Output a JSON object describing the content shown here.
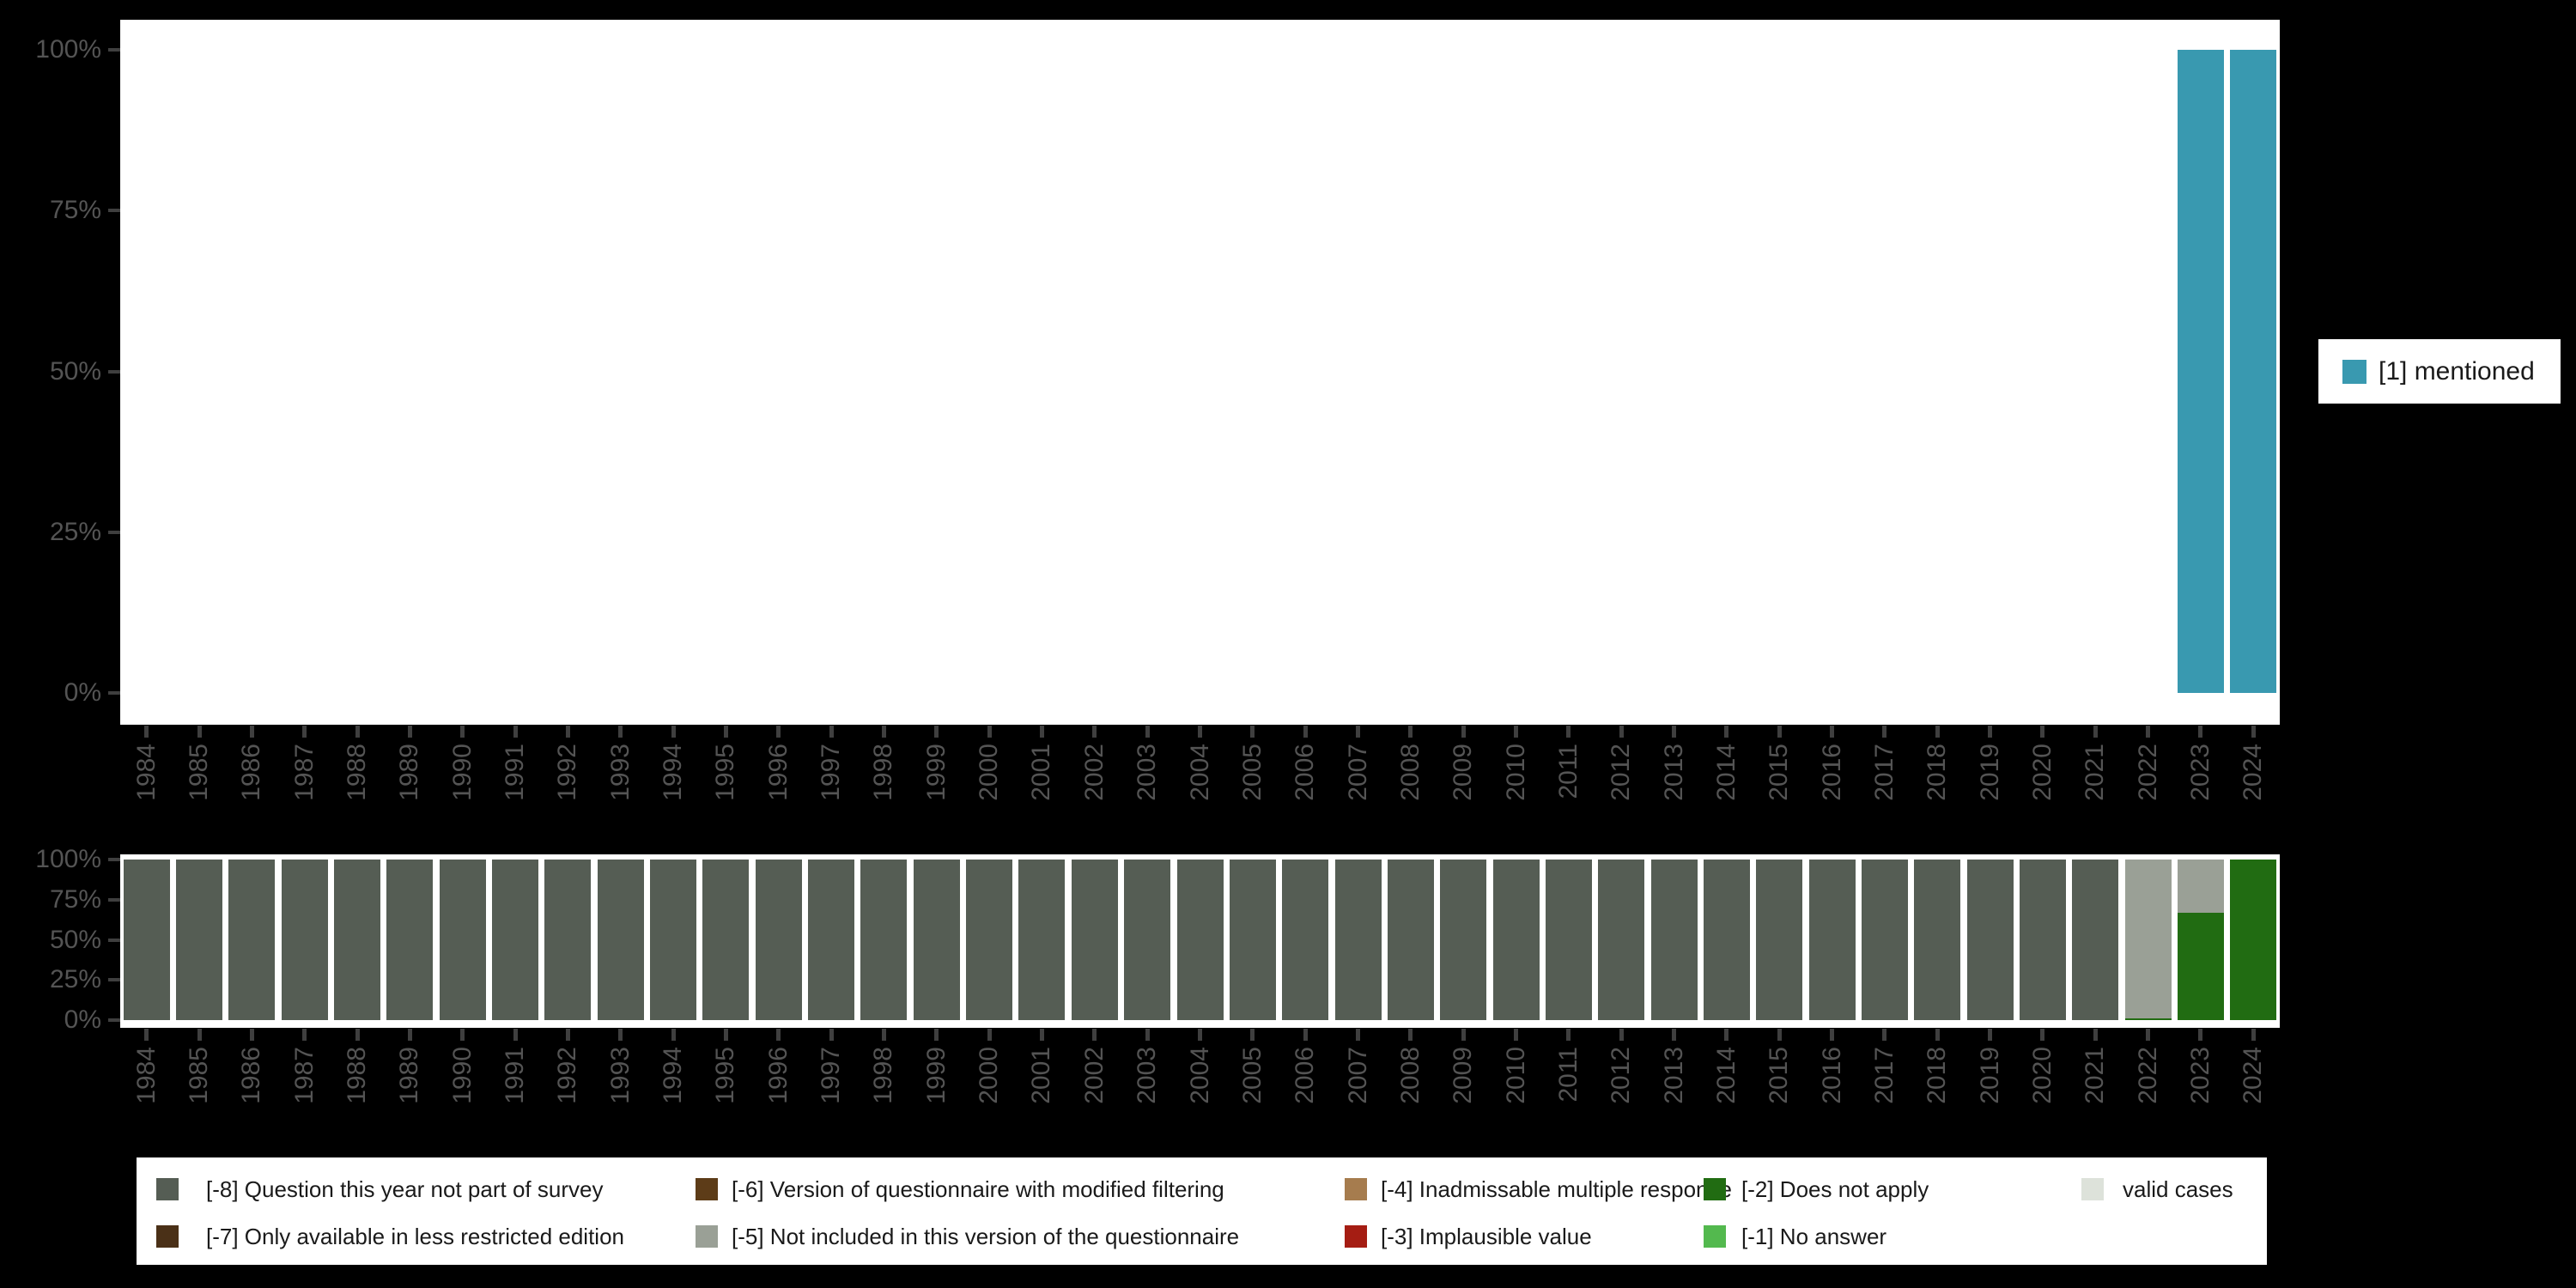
{
  "colors": {
    "background": "#000000",
    "panel": "#ffffff",
    "axis_text": "#545454",
    "axis_tick": "#3f3f3f",
    "legend_text": "#1a1a1a",
    "mentioned": "#3999B0",
    "code_m8": "#555D54",
    "code_m7": "#4A3017",
    "code_m6": "#5D3C18",
    "code_m5": "#9AA096",
    "code_m4": "#A67C4E",
    "code_m3": "#A51D13",
    "code_m2": "#216C12",
    "code_m1": "#53B94E",
    "valid_cases": "#DDE2DA"
  },
  "years": [
    "1984",
    "1985",
    "1986",
    "1987",
    "1988",
    "1989",
    "1990",
    "1991",
    "1992",
    "1993",
    "1994",
    "1995",
    "1996",
    "1997",
    "1998",
    "1999",
    "2000",
    "2001",
    "2002",
    "2003",
    "2004",
    "2005",
    "2006",
    "2007",
    "2008",
    "2009",
    "2010",
    "2011",
    "2012",
    "2013",
    "2014",
    "2015",
    "2016",
    "2017",
    "2018",
    "2019",
    "2020",
    "2021",
    "2022",
    "2023",
    "2024"
  ],
  "y_axis_ticks": [
    "100%",
    "75%",
    "50%",
    "25%",
    "0%"
  ],
  "top_legend": {
    "label": "[1] mentioned",
    "color": "#3999B0"
  },
  "bottom_legend": {
    "items": [
      {
        "label": "[-8] Question this year not part of survey",
        "color": "#555D54"
      },
      {
        "label": "[-7] Only available in less restricted edition",
        "color": "#4A3017"
      },
      {
        "label": "[-6] Version of questionnaire with modified filtering",
        "color": "#5D3C18"
      },
      {
        "label": "[-5] Not included in this version of the questionnaire",
        "color": "#9AA096"
      },
      {
        "label": "[-4] Inadmissable multiple response",
        "color": "#A67C4E"
      },
      {
        "label": "[-3] Implausible value",
        "color": "#A51D13"
      },
      {
        "label": "[-2] Does not apply",
        "color": "#216C12"
      },
      {
        "label": "[-1] No answer",
        "color": "#53B94E"
      },
      {
        "label": "valid cases",
        "color": "#DDE2DA"
      }
    ]
  },
  "chart_data": [
    {
      "type": "bar",
      "stacked": true,
      "title": "",
      "xlabel": "",
      "ylabel": "",
      "x": [
        "1984",
        "1985",
        "1986",
        "1987",
        "1988",
        "1989",
        "1990",
        "1991",
        "1992",
        "1993",
        "1994",
        "1995",
        "1996",
        "1997",
        "1998",
        "1999",
        "2000",
        "2001",
        "2002",
        "2003",
        "2004",
        "2005",
        "2006",
        "2007",
        "2008",
        "2009",
        "2010",
        "2011",
        "2012",
        "2013",
        "2014",
        "2015",
        "2016",
        "2017",
        "2018",
        "2019",
        "2020",
        "2021",
        "2022",
        "2023",
        "2024"
      ],
      "y_tick_labels": [
        "0%",
        "25%",
        "50%",
        "75%",
        "100%"
      ],
      "ylim": [
        0,
        100
      ],
      "grid": false,
      "legend_position": "right",
      "series": [
        {
          "name": "[1] mentioned",
          "color": "#3999B0",
          "values": [
            0,
            0,
            0,
            0,
            0,
            0,
            0,
            0,
            0,
            0,
            0,
            0,
            0,
            0,
            0,
            0,
            0,
            0,
            0,
            0,
            0,
            0,
            0,
            0,
            0,
            0,
            0,
            0,
            0,
            0,
            0,
            0,
            0,
            0,
            0,
            0,
            0,
            0,
            0,
            100,
            100
          ]
        }
      ]
    },
    {
      "type": "bar",
      "stacked": true,
      "title": "",
      "xlabel": "",
      "ylabel": "",
      "x": [
        "1984",
        "1985",
        "1986",
        "1987",
        "1988",
        "1989",
        "1990",
        "1991",
        "1992",
        "1993",
        "1994",
        "1995",
        "1996",
        "1997",
        "1998",
        "1999",
        "2000",
        "2001",
        "2002",
        "2003",
        "2004",
        "2005",
        "2006",
        "2007",
        "2008",
        "2009",
        "2010",
        "2011",
        "2012",
        "2013",
        "2014",
        "2015",
        "2016",
        "2017",
        "2018",
        "2019",
        "2020",
        "2021",
        "2022",
        "2023",
        "2024"
      ],
      "y_tick_labels": [
        "0%",
        "25%",
        "50%",
        "75%",
        "100%"
      ],
      "ylim": [
        0,
        100
      ],
      "grid": false,
      "legend_position": "bottom",
      "series": [
        {
          "name": "[-8] Question this year not part of survey",
          "color": "#555D54",
          "values": [
            100,
            100,
            100,
            100,
            100,
            100,
            100,
            100,
            100,
            100,
            100,
            100,
            100,
            100,
            100,
            100,
            100,
            100,
            100,
            100,
            100,
            100,
            100,
            100,
            100,
            100,
            100,
            100,
            100,
            100,
            100,
            100,
            100,
            100,
            100,
            100,
            100,
            100,
            0,
            0,
            0
          ]
        },
        {
          "name": "[-5] Not included in this version of the questionnaire",
          "color": "#9AA096",
          "values": [
            0,
            0,
            0,
            0,
            0,
            0,
            0,
            0,
            0,
            0,
            0,
            0,
            0,
            0,
            0,
            0,
            0,
            0,
            0,
            0,
            0,
            0,
            0,
            0,
            0,
            0,
            0,
            0,
            0,
            0,
            0,
            0,
            0,
            0,
            0,
            0,
            0,
            0,
            98.8,
            33,
            0
          ]
        },
        {
          "name": "[-2] Does not apply",
          "color": "#216C12",
          "values": [
            0,
            0,
            0,
            0,
            0,
            0,
            0,
            0,
            0,
            0,
            0,
            0,
            0,
            0,
            0,
            0,
            0,
            0,
            0,
            0,
            0,
            0,
            0,
            0,
            0,
            0,
            0,
            0,
            0,
            0,
            0,
            0,
            0,
            0,
            0,
            0,
            0,
            0,
            1.2,
            67,
            100
          ]
        }
      ]
    }
  ]
}
